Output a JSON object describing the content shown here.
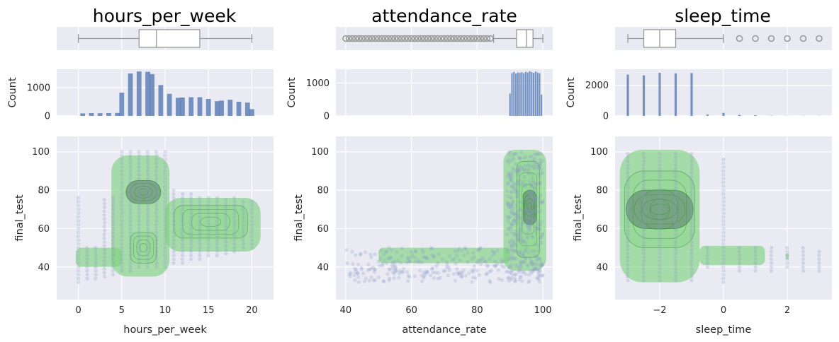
{
  "colors": {
    "panel_bg": "#eaeaf2",
    "bar": "#4c72b0",
    "box_edge": "#999999",
    "scatter": "#8896c8",
    "kde_fill": "#7ad27a",
    "kde_line": "#2e8b2e"
  },
  "chart_data": [
    {
      "type": "box",
      "title": "hours_per_week",
      "variable": "hours_per_week",
      "xlim": [
        -2.5,
        22.5
      ],
      "stats": {
        "whisker_low": 0,
        "q1": 7,
        "median": 9,
        "q3": 14,
        "whisker_high": 20
      },
      "outliers": []
    },
    {
      "type": "box",
      "title": "attendance_rate",
      "variable": "attendance_rate",
      "xlim": [
        37,
        103
      ],
      "stats": {
        "whisker_low": 85,
        "q1": 92,
        "median": 95,
        "q3": 97,
        "whisker_high": 100
      },
      "outliers": [
        40,
        41,
        42,
        43,
        44,
        45,
        46,
        47,
        48,
        49,
        50,
        51,
        52,
        53,
        54,
        55,
        56,
        57,
        58,
        59,
        60,
        61,
        62,
        63,
        64,
        65,
        66,
        67,
        68,
        69,
        70,
        71,
        72,
        73,
        74,
        75,
        76,
        77,
        78,
        79,
        80,
        81,
        82,
        83,
        84
      ]
    },
    {
      "type": "box",
      "title": "sleep_time",
      "variable": "sleep_time",
      "xlim": [
        -3.4,
        3.4
      ],
      "stats": {
        "whisker_low": -3,
        "q1": -2.5,
        "median": -2,
        "q3": -1.5,
        "whisker_high": 0
      },
      "outliers": [
        0.5,
        1,
        1.5,
        2,
        2.5,
        3
      ]
    },
    {
      "type": "bar",
      "variable": "hours_per_week",
      "xlabel": "",
      "ylabel": "Count",
      "xlim": [
        -2.5,
        22.5
      ],
      "ylim": [
        0,
        1650
      ],
      "yticks": [
        0,
        1000
      ],
      "bin_width": 0.55,
      "bins": [
        {
          "x": 0.5,
          "count": 90
        },
        {
          "x": 1.5,
          "count": 100
        },
        {
          "x": 2.5,
          "count": 95
        },
        {
          "x": 3.5,
          "count": 100
        },
        {
          "x": 4.5,
          "count": 105
        },
        {
          "x": 5.0,
          "count": 820
        },
        {
          "x": 6.0,
          "count": 1500
        },
        {
          "x": 7.0,
          "count": 1570
        },
        {
          "x": 8.0,
          "count": 1560
        },
        {
          "x": 8.5,
          "count": 1480
        },
        {
          "x": 9.5,
          "count": 1090
        },
        {
          "x": 10.5,
          "count": 780
        },
        {
          "x": 11.5,
          "count": 640
        },
        {
          "x": 12.0,
          "count": 650
        },
        {
          "x": 13.0,
          "count": 660
        },
        {
          "x": 14.0,
          "count": 660
        },
        {
          "x": 15.0,
          "count": 600
        },
        {
          "x": 16.0,
          "count": 520
        },
        {
          "x": 16.5,
          "count": 540
        },
        {
          "x": 17.5,
          "count": 570
        },
        {
          "x": 18.5,
          "count": 500
        },
        {
          "x": 19.5,
          "count": 470
        },
        {
          "x": 20.0,
          "count": 240
        }
      ]
    },
    {
      "type": "bar",
      "variable": "attendance_rate",
      "xlabel": "",
      "ylabel": "Count",
      "xlim": [
        37,
        103
      ],
      "ylim": [
        0,
        1420
      ],
      "yticks": [
        0,
        1000
      ],
      "bin_width": 0.45,
      "bins": [
        {
          "x": 90.0,
          "count": 680
        },
        {
          "x": 90.6,
          "count": 1300
        },
        {
          "x": 91.2,
          "count": 1340
        },
        {
          "x": 91.8,
          "count": 1290
        },
        {
          "x": 92.4,
          "count": 1320
        },
        {
          "x": 93.0,
          "count": 1310
        },
        {
          "x": 93.6,
          "count": 1330
        },
        {
          "x": 94.2,
          "count": 1300
        },
        {
          "x": 94.8,
          "count": 1340
        },
        {
          "x": 95.4,
          "count": 1320
        },
        {
          "x": 96.0,
          "count": 1360
        },
        {
          "x": 96.6,
          "count": 1330
        },
        {
          "x": 97.2,
          "count": 1310
        },
        {
          "x": 97.8,
          "count": 1350
        },
        {
          "x": 98.4,
          "count": 1320
        },
        {
          "x": 99.0,
          "count": 1300
        },
        {
          "x": 99.6,
          "count": 650
        }
      ]
    },
    {
      "type": "bar",
      "variable": "sleep_time",
      "xlabel": "",
      "ylabel": "Count",
      "xlim": [
        -3.4,
        3.4
      ],
      "ylim": [
        0,
        3050
      ],
      "yticks": [
        0,
        2000
      ],
      "bin_width": 0.07,
      "bins": [
        {
          "x": -3.0,
          "count": 2700
        },
        {
          "x": -2.5,
          "count": 2650
        },
        {
          "x": -2.0,
          "count": 2820
        },
        {
          "x": -1.5,
          "count": 2780
        },
        {
          "x": -1.0,
          "count": 2800
        },
        {
          "x": -0.5,
          "count": 90
        },
        {
          "x": 0.0,
          "count": 200
        },
        {
          "x": 0.5,
          "count": 60
        },
        {
          "x": 1.0,
          "count": 45
        },
        {
          "x": 1.5,
          "count": 15
        },
        {
          "x": 2.0,
          "count": 10
        },
        {
          "x": 2.5,
          "count": 8
        },
        {
          "x": 3.0,
          "count": 6
        }
      ]
    },
    {
      "type": "scatter",
      "variable": "hours_per_week",
      "xlabel": "hours_per_week",
      "ylabel": "final_test",
      "xlim": [
        -2.5,
        22.5
      ],
      "ylim": [
        23,
        108
      ],
      "xticks": [
        0,
        5,
        10,
        15,
        20
      ],
      "yticks": [
        40,
        60,
        80,
        100
      ],
      "x_values": [
        0,
        1,
        2,
        3,
        4,
        5,
        6,
        7,
        8,
        9,
        10,
        11,
        12,
        13,
        14,
        15,
        16,
        17,
        18,
        19,
        20
      ],
      "y_ranges": [
        [
          32,
          76
        ],
        [
          34,
          50
        ],
        [
          34,
          50
        ],
        [
          35,
          76
        ],
        [
          36,
          76
        ],
        [
          38,
          100
        ],
        [
          38,
          100
        ],
        [
          40,
          100
        ],
        [
          40,
          100
        ],
        [
          40,
          100
        ],
        [
          40,
          100
        ],
        [
          42,
          80
        ],
        [
          42,
          78
        ],
        [
          44,
          78
        ],
        [
          44,
          76
        ],
        [
          46,
          76
        ],
        [
          46,
          76
        ],
        [
          47,
          76
        ],
        [
          48,
          76
        ],
        [
          50,
          74
        ],
        [
          50,
          74
        ]
      ],
      "kde_regions": [
        {
          "x_range": [
            -0.3,
            5.0
          ],
          "y_range": [
            40,
            50
          ],
          "level": "outer"
        },
        {
          "x_range": [
            3.8,
            10.5
          ],
          "y_range": [
            35,
            98
          ],
          "level": "outer"
        },
        {
          "x_range": [
            10.0,
            21.0
          ],
          "y_range": [
            48,
            76
          ],
          "level": "outer"
        },
        {
          "x_range": [
            5.5,
            9.5
          ],
          "y_range": [
            73,
            85
          ],
          "level": "peak"
        },
        {
          "x_range": [
            6.0,
            9.0
          ],
          "y_range": [
            42,
            58
          ],
          "level": "inner"
        },
        {
          "x_range": [
            11.0,
            19.5
          ],
          "y_range": [
            55,
            72
          ],
          "level": "inner"
        }
      ]
    },
    {
      "type": "scatter",
      "variable": "attendance_rate",
      "xlabel": "attendance_rate",
      "ylabel": "final_test",
      "xlim": [
        37,
        103
      ],
      "ylim": [
        23,
        108
      ],
      "xticks": [
        40,
        60,
        80,
        100
      ],
      "yticks": [
        40,
        60,
        80,
        100
      ],
      "low_band": {
        "x_range": [
          40,
          89
        ],
        "y_range": [
          32,
          50
        ]
      },
      "high_band": {
        "x_range": [
          89,
          100
        ],
        "y_range": [
          32,
          100
        ]
      },
      "kde_regions": [
        {
          "x_range": [
            50,
            90
          ],
          "y_range": [
            42,
            50
          ],
          "level": "outer"
        },
        {
          "x_range": [
            88,
            101
          ],
          "y_range": [
            38,
            101
          ],
          "level": "outer"
        },
        {
          "x_range": [
            92,
            99
          ],
          "y_range": [
            45,
            95
          ],
          "level": "inner"
        },
        {
          "x_range": [
            94,
            98
          ],
          "y_range": [
            62,
            80
          ],
          "level": "peak"
        }
      ]
    },
    {
      "type": "scatter",
      "variable": "sleep_time",
      "xlabel": "sleep_time",
      "ylabel": "final_test",
      "xlim": [
        -3.4,
        3.4
      ],
      "ylim": [
        23,
        108
      ],
      "xticks": [
        -2,
        0,
        2
      ],
      "xtick_labels": [
        "−2",
        "0",
        "2"
      ],
      "yticks": [
        40,
        60,
        80,
        100
      ],
      "x_values": [
        -3,
        -2.5,
        -2,
        -1.5,
        -1,
        -0.5,
        0,
        0.5,
        1,
        1.5,
        2,
        2.5,
        3
      ],
      "y_ranges": [
        [
          33,
          100
        ],
        [
          33,
          100
        ],
        [
          33,
          100
        ],
        [
          33,
          100
        ],
        [
          33,
          100
        ],
        [
          40,
          50
        ],
        [
          32,
          96
        ],
        [
          38,
          50
        ],
        [
          38,
          50
        ],
        [
          38,
          50
        ],
        [
          40,
          50
        ],
        [
          38,
          50
        ],
        [
          38,
          49
        ]
      ],
      "kde_regions": [
        {
          "x_range": [
            -3.25,
            -0.75
          ],
          "y_range": [
            32,
            101
          ],
          "level": "outer"
        },
        {
          "x_range": [
            -0.75,
            1.3
          ],
          "y_range": [
            41,
            51
          ],
          "level": "outer"
        },
        {
          "x_range": [
            1.95,
            2.05
          ],
          "y_range": [
            44,
            47
          ],
          "level": "outer"
        },
        {
          "x_range": [
            -3.1,
            -0.9
          ],
          "y_range": [
            50,
            90
          ],
          "level": "inner"
        },
        {
          "x_range": [
            -3.05,
            -0.95
          ],
          "y_range": [
            60,
            80
          ],
          "level": "peak"
        }
      ]
    }
  ]
}
